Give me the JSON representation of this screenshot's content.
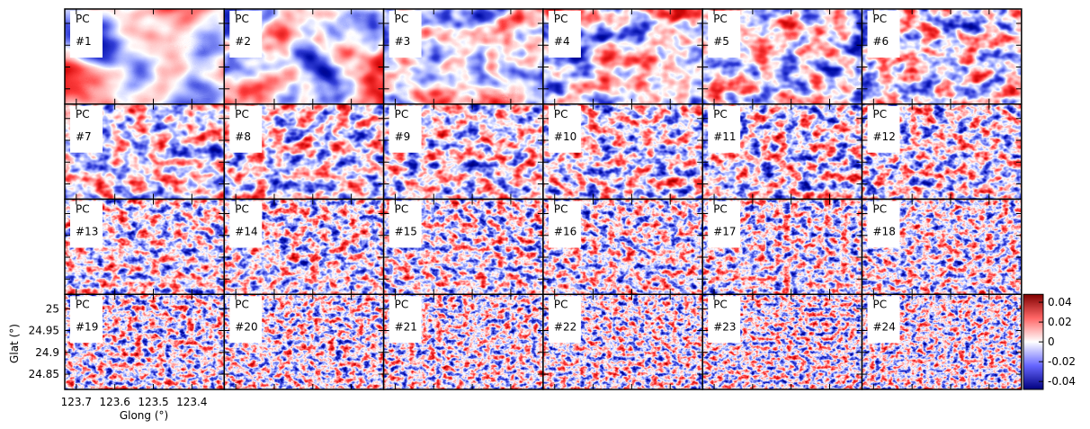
{
  "chart_data": {
    "type": "image-grid",
    "panels": [
      {
        "title": "PC",
        "id": "#1"
      },
      {
        "title": "PC",
        "id": "#2"
      },
      {
        "title": "PC",
        "id": "#3"
      },
      {
        "title": "PC",
        "id": "#4"
      },
      {
        "title": "PC",
        "id": "#5"
      },
      {
        "title": "PC",
        "id": "#6"
      },
      {
        "title": "PC",
        "id": "#7"
      },
      {
        "title": "PC",
        "id": "#8"
      },
      {
        "title": "PC",
        "id": "#9"
      },
      {
        "title": "PC",
        "id": "#10"
      },
      {
        "title": "PC",
        "id": "#11"
      },
      {
        "title": "PC",
        "id": "#12"
      },
      {
        "title": "PC",
        "id": "#13"
      },
      {
        "title": "PC",
        "id": "#14"
      },
      {
        "title": "PC",
        "id": "#15"
      },
      {
        "title": "PC",
        "id": "#16"
      },
      {
        "title": "PC",
        "id": "#17"
      },
      {
        "title": "PC",
        "id": "#18"
      },
      {
        "title": "PC",
        "id": "#19"
      },
      {
        "title": "PC",
        "id": "#20"
      },
      {
        "title": "PC",
        "id": "#21"
      },
      {
        "title": "PC",
        "id": "#22"
      },
      {
        "title": "PC",
        "id": "#23"
      },
      {
        "title": "PC",
        "id": "#24"
      }
    ],
    "x_label": "Glong (°)",
    "y_label": "Glat (°)",
    "xlim": [
      123.73,
      123.316
    ],
    "xticks": [
      123.7,
      123.6,
      123.5,
      123.4
    ],
    "ylim": [
      24.815,
      25.033
    ],
    "yticks": [
      25,
      24.95,
      24.9,
      24.85
    ],
    "clim": [
      -0.048,
      0.048
    ],
    "cticks": [
      0.04,
      0.02,
      0,
      -0.02,
      -0.04
    ]
  }
}
